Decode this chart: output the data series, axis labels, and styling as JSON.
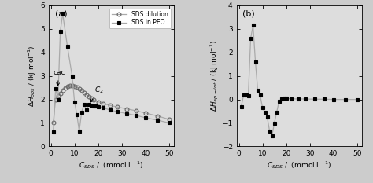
{
  "panel_a": {
    "title": "(a)",
    "ylabel": "$\\Delta H_{obs}$ / (kJ mol$^{-1}$)",
    "xlabel": "$C_{SDS}$ /  (mmol L$^{-1}$)",
    "xlim": [
      -1,
      52
    ],
    "ylim": [
      0,
      6
    ],
    "yticks": [
      0,
      1,
      2,
      3,
      4,
      5,
      6
    ],
    "xticks": [
      0,
      10,
      20,
      30,
      40,
      50
    ],
    "sds_dilution_x": [
      1.0,
      2.0,
      3.0,
      4.0,
      5.0,
      6.0,
      7.0,
      8.0,
      9.0,
      10.0,
      11.0,
      12.0,
      13.0,
      14.0,
      15.0,
      16.0,
      17.0,
      18.0,
      20.0,
      22.0,
      25.0,
      28.0,
      32.0,
      36.0,
      40.0,
      45.0,
      50.0
    ],
    "sds_dilution_y": [
      1.0,
      2.0,
      2.15,
      2.25,
      2.4,
      2.5,
      2.55,
      2.58,
      2.6,
      2.57,
      2.52,
      2.45,
      2.38,
      2.28,
      2.2,
      2.12,
      2.06,
      2.0,
      1.9,
      1.82,
      1.75,
      1.68,
      1.6,
      1.52,
      1.42,
      1.3,
      1.15
    ],
    "sds_peo_x": [
      1.0,
      2.0,
      3.0,
      4.0,
      5.0,
      7.0,
      9.0,
      10.0,
      11.0,
      12.0,
      13.0,
      14.0,
      15.0,
      16.0,
      17.0,
      18.0,
      19.0,
      20.0,
      22.0,
      25.0,
      28.0,
      32.0,
      36.0,
      40.0,
      45.0,
      50.0
    ],
    "sds_peo_y": [
      0.6,
      2.45,
      2.0,
      4.9,
      5.65,
      4.25,
      3.0,
      1.9,
      1.35,
      0.65,
      1.45,
      1.8,
      1.55,
      1.78,
      1.75,
      1.73,
      1.72,
      1.7,
      1.65,
      1.55,
      1.48,
      1.4,
      1.32,
      1.22,
      1.12,
      1.0
    ],
    "cac_label": "cac",
    "c2_label": "$C_2$",
    "legend_labels": [
      "SDS dilution",
      "SDS in PEO"
    ],
    "line_color": "#aaaaaa",
    "bg_color": "#dddddd"
  },
  "panel_b": {
    "title": "(b)",
    "ylabel": "$\\Delta H_{ap-int}$ / (kJ mol$^{-1}$)",
    "xlabel": "$C_{SDS}$ /  (mmol L$^{-1}$)",
    "xlim": [
      -1,
      52
    ],
    "ylim": [
      -2,
      4
    ],
    "yticks": [
      -2,
      -1,
      0,
      1,
      2,
      3,
      4
    ],
    "xticks": [
      0,
      10,
      20,
      30,
      40,
      50
    ],
    "x": [
      1.0,
      2.0,
      3.0,
      4.0,
      5.0,
      6.0,
      7.0,
      8.0,
      9.0,
      10.0,
      11.0,
      12.0,
      13.0,
      14.0,
      15.0,
      16.0,
      17.0,
      18.0,
      19.0,
      20.0,
      22.0,
      25.0,
      28.0,
      32.0,
      36.0,
      40.0,
      45.0,
      50.0
    ],
    "y": [
      -0.3,
      0.18,
      0.2,
      0.17,
      2.6,
      3.15,
      1.6,
      0.38,
      0.18,
      -0.35,
      -0.55,
      -0.75,
      -1.35,
      -1.55,
      -1.02,
      -0.55,
      -0.08,
      0.02,
      0.04,
      0.04,
      0.03,
      0.02,
      0.02,
      0.01,
      0.01,
      0.0,
      0.0,
      0.0
    ],
    "line_color": "#aaaaaa",
    "bg_color": "#dddddd"
  },
  "fig_bg_color": "#cccccc"
}
